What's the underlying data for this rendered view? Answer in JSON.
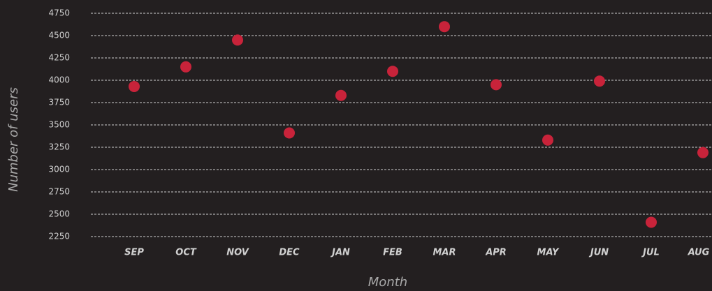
{
  "chart_data": {
    "type": "scatter",
    "x_label": "Month",
    "y_label": "Number of users",
    "categories": [
      "SEP",
      "OCT",
      "NOV",
      "DEC",
      "JAN",
      "FEB",
      "MAR",
      "APR",
      "MAY",
      "JUN",
      "JUL",
      "AUG"
    ],
    "values": [
      3930,
      4150,
      4450,
      3410,
      3830,
      4100,
      4600,
      3950,
      3330,
      3990,
      2410,
      3190
    ],
    "color": "#c8233a",
    "ylim": [
      2250,
      4750
    ],
    "yticks": [
      2250,
      2500,
      2750,
      3000,
      3250,
      3500,
      3750,
      4000,
      4250,
      4500,
      4750
    ],
    "grid": true
  }
}
